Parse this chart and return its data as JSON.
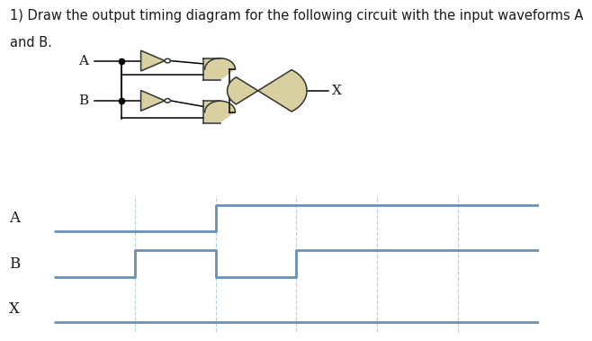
{
  "title_line1": "1) Draw the output timing diagram for the following circuit with the input waveforms A",
  "title_line2": "and B.",
  "bg_color": "#ffffff",
  "signal_color": "#6a90b8",
  "grid_color": "#b8cfe0",
  "label_color": "#1a1a1a",
  "gate_fill": "#d8d0a0",
  "gate_edge": "#333333",
  "signals": {
    "A": {
      "times": [
        0,
        2,
        2,
        6
      ],
      "values": [
        0,
        0,
        1,
        1
      ]
    },
    "B": {
      "times": [
        0,
        1,
        1,
        2,
        2,
        3,
        3,
        6
      ],
      "values": [
        0,
        0,
        1,
        1,
        0,
        0,
        1,
        1
      ]
    },
    "X": {
      "times": [
        0,
        6
      ],
      "values": [
        0,
        0
      ]
    }
  },
  "signal_order": [
    "A",
    "B",
    "X"
  ],
  "grid_times": [
    1,
    2,
    3,
    4,
    5
  ],
  "time_range": [
    0,
    6
  ],
  "label_fontsize": 12,
  "title_fontsize": 10.5
}
